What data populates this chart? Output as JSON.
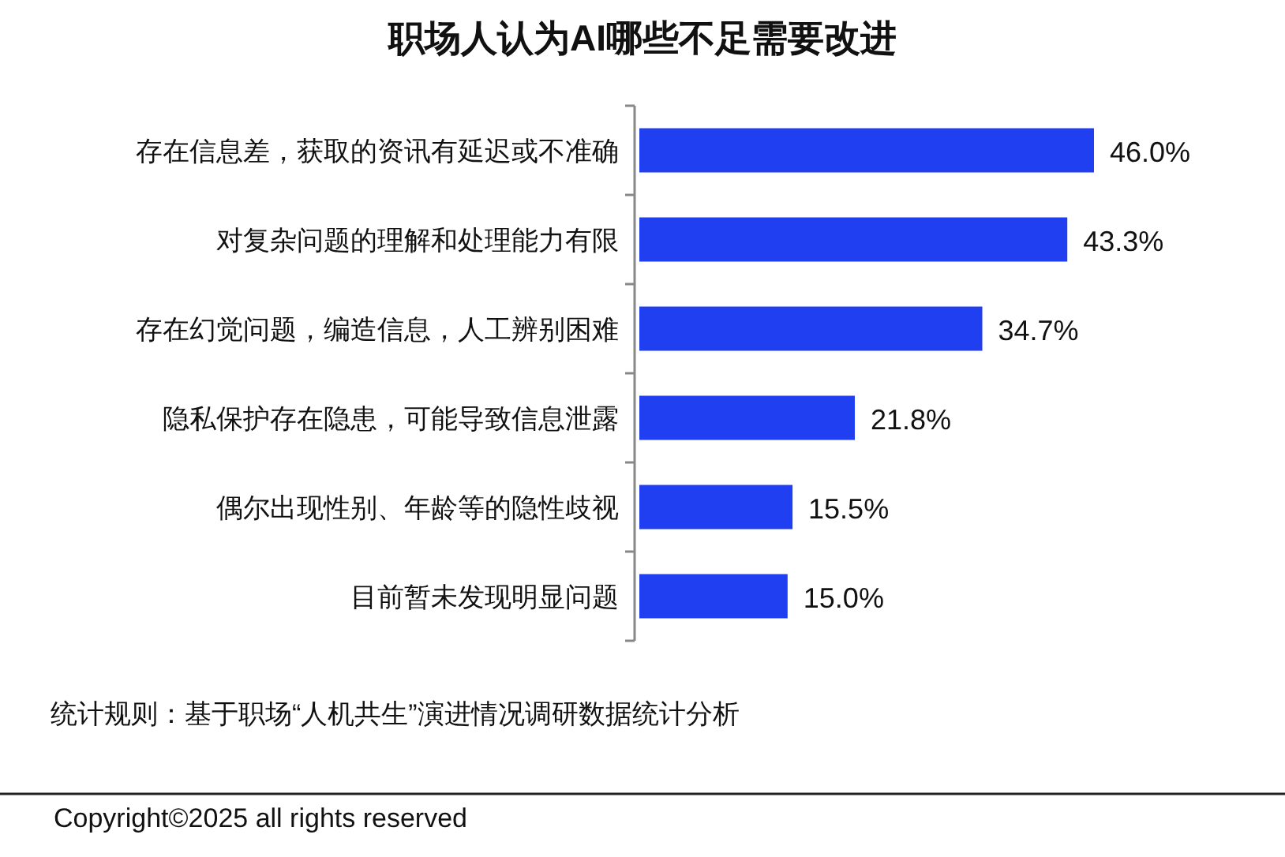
{
  "chart_data": {
    "type": "bar",
    "orientation": "horizontal",
    "title": "职场人认为AI哪些不足需要改进",
    "categories": [
      "存在信息差，获取的资讯有延迟或不准确",
      "对复杂问题的理解和处理能力有限",
      "存在幻觉问题，编造信息，人工辨别困难",
      "隐私保护存在隐患，可能导致信息泄露",
      "偶尔出现性别、年龄等的隐性歧视",
      "目前暂未发现明显问题"
    ],
    "values": [
      46.0,
      43.3,
      34.7,
      21.8,
      15.5,
      15.0
    ],
    "value_labels": [
      "46.0%",
      "43.3%",
      "34.7%",
      "21.8%",
      "15.5%",
      "15.0%"
    ],
    "color": "#1f3ff0",
    "annotations": [
      "统计规则：基于职场“人机共生”演进情况调研数据统计分析",
      "Copyright©2025 all rights reserved"
    ]
  }
}
